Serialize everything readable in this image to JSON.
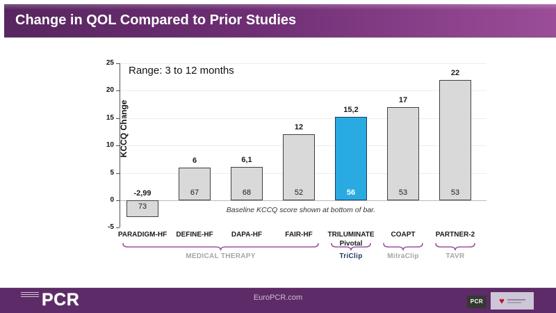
{
  "header": {
    "title": "Change in QOL Compared to Prior Studies",
    "gradient_left": "#57265f",
    "gradient_right": "#9b4d98"
  },
  "chart_data": {
    "type": "bar",
    "ylabel": "KCCQ Change",
    "ylim": [
      -5,
      25
    ],
    "yticks": [
      -5,
      0,
      5,
      10,
      15,
      20,
      25
    ],
    "annotation": "Range: 3 to 12 months",
    "note": "Baseline KCCQ score shown at bottom of bar.",
    "categories": [
      "PARADIGM-HF",
      "DEFINE-HF",
      "DAPA-HF",
      "FAIR-HF",
      "TRILUMINATE",
      "COAPT",
      "PARTNER-2"
    ],
    "category_sublabels": [
      "",
      "",
      "",
      "",
      "Pivotal",
      "",
      ""
    ],
    "values": [
      -2.99,
      6,
      6.1,
      12,
      15.2,
      17,
      22
    ],
    "value_labels": [
      "-2,99",
      "6",
      "6,1",
      "12",
      "15,2",
      "17",
      "22"
    ],
    "baseline_scores": [
      "73",
      "67",
      "68",
      "52",
      "56",
      "53",
      "53"
    ],
    "highlight_index": 4,
    "bar_color_default": "#d9d9d9",
    "bar_color_highlight": "#29abe2",
    "bar_border_default": "#3f3f3f",
    "bar_border_highlight": "#1f3864",
    "bracket_color": "#9d519d",
    "grid": "horizontal, light",
    "groups": [
      {
        "label": "MEDICAL THERAPY",
        "from": 0,
        "to": 3,
        "color": "#a6a6a6"
      },
      {
        "label": "TriClip",
        "from": 4,
        "to": 4,
        "color": "#1f3864"
      },
      {
        "label": "MitraClip",
        "from": 5,
        "to": 5,
        "color": "#a6a6a6"
      },
      {
        "label": "TAVR",
        "from": 6,
        "to": 6,
        "color": "#a6a6a6"
      }
    ]
  },
  "footer": {
    "logo_text": "PCR",
    "url": "EuroPCR.com",
    "badge_pcr": "PCR",
    "background": "#5d2b67"
  }
}
